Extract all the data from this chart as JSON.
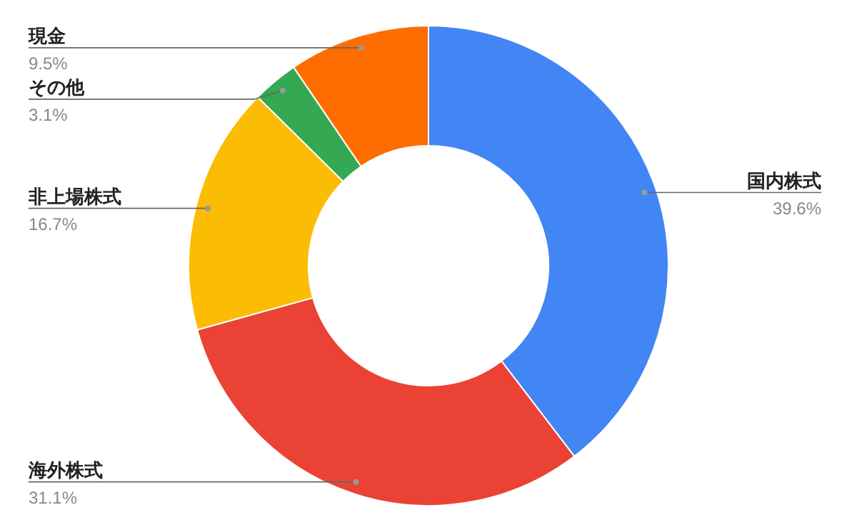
{
  "chart_data": {
    "type": "donut",
    "categories": [
      "国内株式",
      "海外株式",
      "非上場株式",
      "その他",
      "現金"
    ],
    "values": [
      39.6,
      31.1,
      16.7,
      3.1,
      9.5
    ],
    "colors": [
      "#4285f4",
      "#ea4335",
      "#fbbc04",
      "#34a853",
      "#ff6d01"
    ],
    "value_labels": [
      "39.6%",
      "31.1%",
      "16.7%",
      "3.1%",
      "9.5%"
    ],
    "legend": false
  }
}
